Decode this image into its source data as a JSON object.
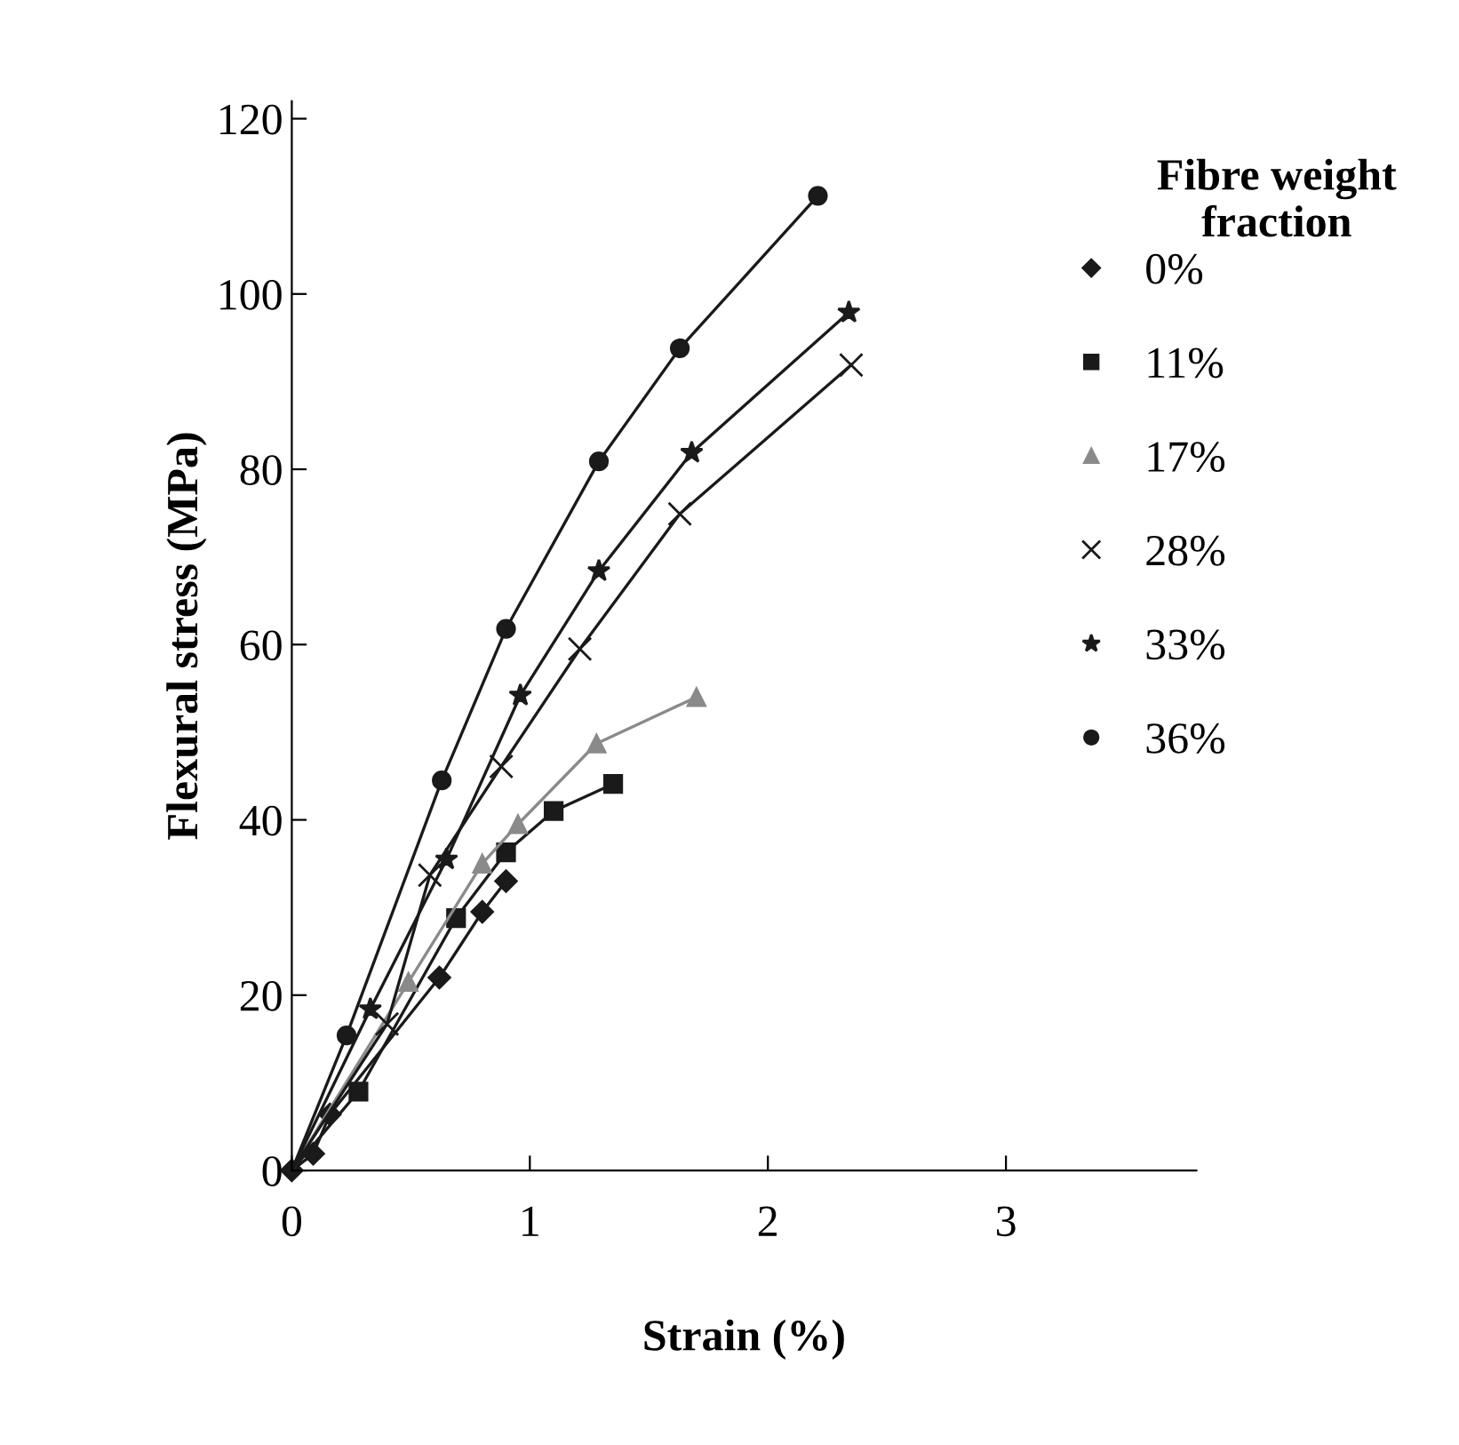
{
  "chart_data": {
    "type": "line",
    "xlabel": "Strain (%)",
    "ylabel": "Flexural stress (MPa)",
    "legend_title": "Fibre weight fraction",
    "legend": "right",
    "grid": false,
    "xlim": [
      0,
      3.8
    ],
    "xticks": [
      0,
      1,
      2,
      3
    ],
    "ylim": [
      0,
      122
    ],
    "yticks": [
      0,
      20,
      40,
      60,
      80,
      100,
      120
    ],
    "series": [
      {
        "name": "0%",
        "color": "#1a1a1a",
        "marker": "diamond",
        "x": [
          0,
          0.09,
          0.16,
          0.62,
          0.8,
          0.9
        ],
        "values": [
          0,
          1.9,
          6.4,
          22,
          29.5,
          33
        ]
      },
      {
        "name": "11%",
        "color": "#1a1a1a",
        "marker": "square",
        "x": [
          0,
          0.28,
          0.69,
          0.9,
          1.1,
          1.35
        ],
        "values": [
          0,
          9,
          28.8,
          36.3,
          41,
          44.1
        ]
      },
      {
        "name": "17%",
        "color": "#8a8a8a",
        "marker": "triangle",
        "x": [
          0,
          0.49,
          0.8,
          0.95,
          1.28,
          1.7
        ],
        "values": [
          0,
          21.5,
          35,
          39.5,
          48.7,
          54
        ]
      },
      {
        "name": "28%",
        "color": "#1a1a1a",
        "marker": "cross",
        "x": [
          0,
          0.4,
          0.58,
          0.88,
          1.21,
          1.63,
          2.35
        ],
        "values": [
          0,
          16.7,
          33.7,
          46.1,
          59.5,
          74.9,
          91.9
        ]
      },
      {
        "name": "33%",
        "color": "#1a1a1a",
        "marker": "star",
        "x": [
          0,
          0.33,
          0.65,
          0.96,
          1.29,
          1.68,
          2.34
        ],
        "values": [
          0,
          18.4,
          35.5,
          54.2,
          68.4,
          81.9,
          97.9
        ]
      },
      {
        "name": "36%",
        "color": "#1a1a1a",
        "marker": "circle",
        "x": [
          0,
          0.23,
          0.63,
          0.9,
          1.29,
          1.63,
          2.21
        ],
        "values": [
          0,
          15.4,
          44.5,
          61.8,
          80.9,
          93.8,
          111.2
        ]
      }
    ]
  }
}
